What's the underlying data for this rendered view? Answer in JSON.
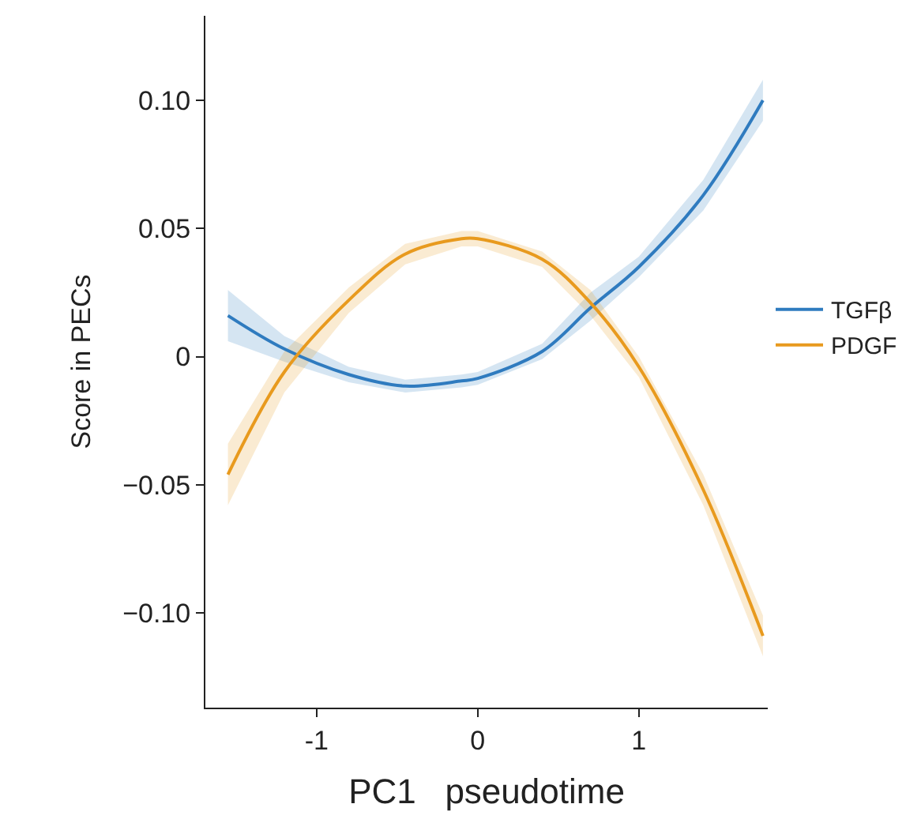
{
  "chart_data": {
    "type": "line",
    "xlabel": "PC1   pseudotime",
    "ylabel": "Score in PECs",
    "x": [
      -1.55,
      -1.2,
      -0.8,
      -0.45,
      -0.1,
      0,
      0.4,
      0.7,
      1.0,
      1.4,
      1.77
    ],
    "series": [
      {
        "name": "TGFβ",
        "color": "#2f7bbf",
        "values": [
          0.016,
          0.003,
          -0.007,
          -0.0115,
          -0.0095,
          -0.0085,
          0.002,
          0.019,
          0.035,
          0.063,
          0.1
        ],
        "lower": [
          0.006,
          -0.002,
          -0.01,
          -0.014,
          -0.012,
          -0.011,
          -0.001,
          0.014,
          0.031,
          0.057,
          0.092
        ],
        "upper": [
          0.026,
          0.008,
          -0.004,
          -0.009,
          -0.007,
          -0.006,
          0.005,
          0.025,
          0.039,
          0.069,
          0.108
        ]
      },
      {
        "name": "PDGF",
        "color": "#e89a1e",
        "values": [
          -0.046,
          -0.006,
          0.022,
          0.04,
          0.046,
          0.046,
          0.038,
          0.021,
          -0.004,
          -0.052,
          -0.109
        ],
        "lower": [
          -0.058,
          -0.014,
          0.017,
          0.036,
          0.043,
          0.043,
          0.035,
          0.016,
          -0.008,
          -0.058,
          -0.117
        ],
        "upper": [
          -0.034,
          0.002,
          0.027,
          0.044,
          0.049,
          0.049,
          0.041,
          0.026,
          0,
          -0.046,
          -0.101
        ]
      }
    ],
    "xlim": [
      -1.69,
      1.8
    ],
    "xticks": [
      -1,
      0,
      1
    ],
    "ylim": [
      -0.137,
      0.133
    ],
    "yticks": [
      {
        "value": -0.1,
        "label": "−0.10"
      },
      {
        "value": -0.05,
        "label": "−0.05"
      },
      0,
      0.05,
      {
        "value": 0.1,
        "label": "0.10"
      }
    ],
    "legend": "right",
    "line_style": "solid",
    "marker": "none"
  }
}
